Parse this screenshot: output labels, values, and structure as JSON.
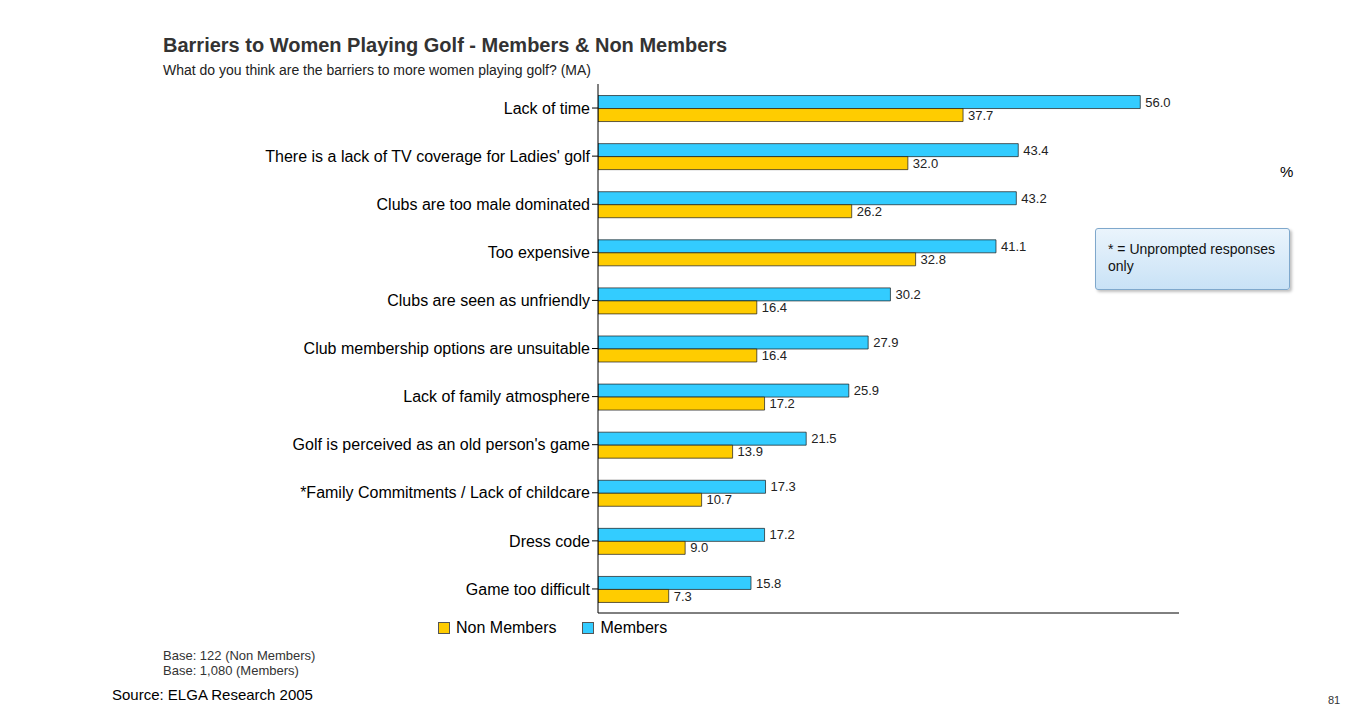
{
  "chart_data": {
    "type": "bar",
    "title": "Barriers to Women Playing Golf - Members & Non Members",
    "subtitle": "What do you think are the barriers to more women playing golf? (MA)",
    "orientation": "horizontal",
    "categories": [
      "Lack of time",
      "There is a lack of TV coverage for Ladies' golf",
      "Clubs are too male dominated",
      "Too expensive",
      "Clubs are seen as unfriendly",
      "Club membership options are unsuitable",
      "Lack of family atmosphere",
      "Golf is perceived as an old person's game",
      "*Family Commitments / Lack of childcare",
      "Dress code",
      "Game too difficult"
    ],
    "series": [
      {
        "name": "Members",
        "color": "#33ccff",
        "values": [
          56.0,
          43.4,
          43.2,
          41.1,
          30.2,
          27.9,
          25.9,
          21.5,
          17.3,
          17.2,
          15.8
        ],
        "value_labels": [
          "56.0",
          "43.4",
          "43.2",
          "41.1",
          "30.2",
          "27.9",
          "25.9",
          "21.5",
          "17.3",
          "17.2",
          "15.8"
        ]
      },
      {
        "name": "Non Members",
        "color": "#ffcc00",
        "values": [
          37.7,
          32.0,
          26.2,
          32.8,
          16.4,
          16.4,
          17.2,
          13.9,
          10.7,
          9.0,
          7.3
        ],
        "value_labels": [
          "37.7",
          "32.0",
          "26.2",
          "32.8",
          "16.4",
          "16.4",
          "17.2",
          "13.9",
          "10.7",
          "9.0",
          "7.3"
        ]
      }
    ],
    "xlim": [
      0,
      60
    ],
    "xticks": [],
    "data_labels": true,
    "tick_labels": "y",
    "grid": false,
    "legend": "bottom",
    "unit_label": "%",
    "note": "* = Unprompted responses only",
    "base_notes": [
      "Base: 122 (Non Members)",
      "Base: 1,080 (Members)"
    ],
    "source": "Source: ELGA Research 2005",
    "page_number": "81"
  }
}
